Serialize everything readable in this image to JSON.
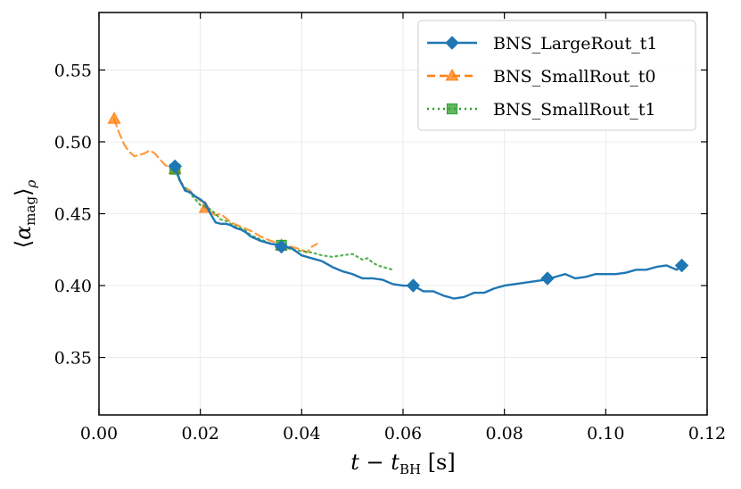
{
  "chart_data": {
    "type": "line",
    "xlabel": "t − t_BH [s]",
    "ylabel": "⟨α_mag⟩_ρ",
    "xlim": [
      0.0,
      0.12
    ],
    "ylim": [
      0.31,
      0.59
    ],
    "x_ticks": [
      0.0,
      0.02,
      0.04,
      0.06,
      0.08,
      0.1,
      0.12
    ],
    "x_tick_labels": [
      "0.00",
      "0.02",
      "0.04",
      "0.06",
      "0.08",
      "0.10",
      "0.12"
    ],
    "y_ticks": [
      0.35,
      0.4,
      0.45,
      0.5,
      0.55
    ],
    "y_tick_labels": [
      "0.35",
      "0.40",
      "0.45",
      "0.50",
      "0.55"
    ],
    "grid": true,
    "legend_position": "top-right",
    "series": [
      {
        "name": "BNS_LargeRout_t1",
        "color": "#1f77b4",
        "line_style": "solid",
        "marker": "diamond",
        "x": [
          0.015,
          0.016,
          0.017,
          0.018,
          0.019,
          0.02,
          0.021,
          0.022,
          0.023,
          0.024,
          0.025,
          0.026,
          0.027,
          0.028,
          0.029,
          0.03,
          0.032,
          0.034,
          0.036,
          0.038,
          0.04,
          0.042,
          0.044,
          0.046,
          0.048,
          0.05,
          0.052,
          0.054,
          0.056,
          0.058,
          0.06,
          0.062,
          0.064,
          0.066,
          0.068,
          0.07,
          0.072,
          0.074,
          0.076,
          0.078,
          0.08,
          0.082,
          0.084,
          0.086,
          0.088,
          0.09,
          0.092,
          0.094,
          0.096,
          0.098,
          0.1,
          0.102,
          0.104,
          0.106,
          0.108,
          0.11,
          0.112,
          0.114,
          0.115
        ],
        "y": [
          0.483,
          0.473,
          0.466,
          0.465,
          0.462,
          0.46,
          0.457,
          0.45,
          0.444,
          0.443,
          0.443,
          0.442,
          0.44,
          0.439,
          0.437,
          0.434,
          0.431,
          0.429,
          0.428,
          0.426,
          0.421,
          0.419,
          0.417,
          0.413,
          0.41,
          0.408,
          0.405,
          0.405,
          0.404,
          0.401,
          0.4,
          0.4,
          0.396,
          0.396,
          0.393,
          0.391,
          0.392,
          0.395,
          0.395,
          0.398,
          0.4,
          0.401,
          0.402,
          0.403,
          0.404,
          0.406,
          0.408,
          0.405,
          0.406,
          0.408,
          0.408,
          0.408,
          0.409,
          0.411,
          0.411,
          0.413,
          0.414,
          0.411,
          0.414
        ],
        "markers_at": [
          0.015,
          0.036,
          0.062,
          0.0885,
          0.115
        ],
        "marker_values": [
          0.483,
          0.427,
          0.4,
          0.405,
          0.414
        ]
      },
      {
        "name": "BNS_SmallRout_t0",
        "color": "#ff7f0e",
        "line_style": "dashed",
        "marker": "triangle",
        "x": [
          0.003,
          0.004,
          0.005,
          0.006,
          0.007,
          0.008,
          0.009,
          0.01,
          0.011,
          0.012,
          0.013,
          0.014,
          0.015,
          0.016,
          0.017,
          0.018,
          0.019,
          0.02,
          0.021,
          0.022,
          0.023,
          0.024,
          0.025,
          0.026,
          0.028,
          0.03,
          0.032,
          0.034,
          0.036,
          0.038,
          0.04,
          0.041,
          0.042,
          0.043
        ],
        "y": [
          0.516,
          0.506,
          0.498,
          0.493,
          0.49,
          0.491,
          0.492,
          0.494,
          0.492,
          0.488,
          0.484,
          0.482,
          0.48,
          0.473,
          0.468,
          0.466,
          0.462,
          0.459,
          0.454,
          0.451,
          0.449,
          0.45,
          0.447,
          0.444,
          0.441,
          0.438,
          0.434,
          0.431,
          0.429,
          0.427,
          0.425,
          0.423,
          0.427,
          0.429
        ],
        "markers_at": [
          0.003,
          0.015,
          0.021,
          0.036
        ],
        "marker_values": [
          0.516,
          0.481,
          0.454,
          0.428
        ]
      },
      {
        "name": "BNS_SmallRout_t1",
        "color": "#2ca02c",
        "line_style": "dotted",
        "marker": "square",
        "x": [
          0.015,
          0.016,
          0.017,
          0.018,
          0.019,
          0.02,
          0.021,
          0.022,
          0.023,
          0.024,
          0.025,
          0.026,
          0.027,
          0.028,
          0.029,
          0.03,
          0.032,
          0.034,
          0.036,
          0.038,
          0.04,
          0.042,
          0.044,
          0.046,
          0.048,
          0.05,
          0.051,
          0.052,
          0.053,
          0.054,
          0.055,
          0.056,
          0.057,
          0.058
        ],
        "y": [
          0.481,
          0.472,
          0.468,
          0.464,
          0.46,
          0.456,
          0.455,
          0.453,
          0.45,
          0.446,
          0.445,
          0.443,
          0.441,
          0.44,
          0.438,
          0.435,
          0.432,
          0.429,
          0.428,
          0.425,
          0.424,
          0.423,
          0.421,
          0.42,
          0.421,
          0.422,
          0.42,
          0.418,
          0.419,
          0.416,
          0.414,
          0.413,
          0.412,
          0.411
        ],
        "markers_at": [
          0.015,
          0.036
        ],
        "marker_values": [
          0.481,
          0.428
        ]
      }
    ]
  }
}
